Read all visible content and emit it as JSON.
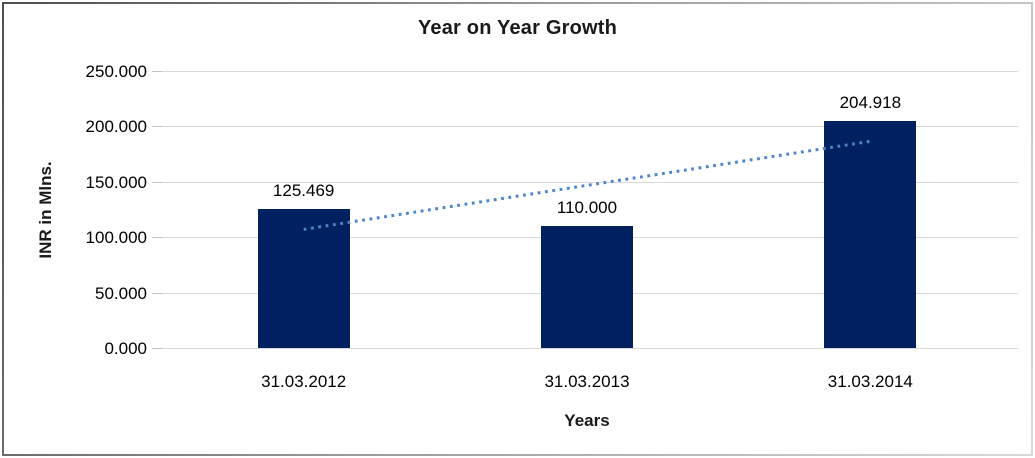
{
  "chart_data": {
    "type": "bar",
    "title": "Year on Year Growth",
    "xlabel": "Years",
    "ylabel": "INR in Mlns.",
    "categories": [
      "31.03.2012",
      "31.03.2013",
      "31.03.2014"
    ],
    "values": [
      125.469,
      110.0,
      204.918
    ],
    "value_labels": [
      "125.469",
      "110.000",
      "204.918"
    ],
    "ylim": [
      0,
      250
    ],
    "ytick_step": 50,
    "ytick_labels": [
      "0.000",
      "50.000",
      "100.000",
      "150.000",
      "200.000",
      "250.000"
    ],
    "grid": true,
    "legend_position": "none",
    "colors": {
      "bar": "#002060",
      "trendline": "#4a86c8",
      "gridline": "#d9d9d9",
      "text": "#000000",
      "frame": "#9a9a9a"
    },
    "trendline": {
      "kind": "linear",
      "style": "dotted",
      "fitted_endpoint_values": [
        107.07,
        186.52
      ]
    }
  }
}
